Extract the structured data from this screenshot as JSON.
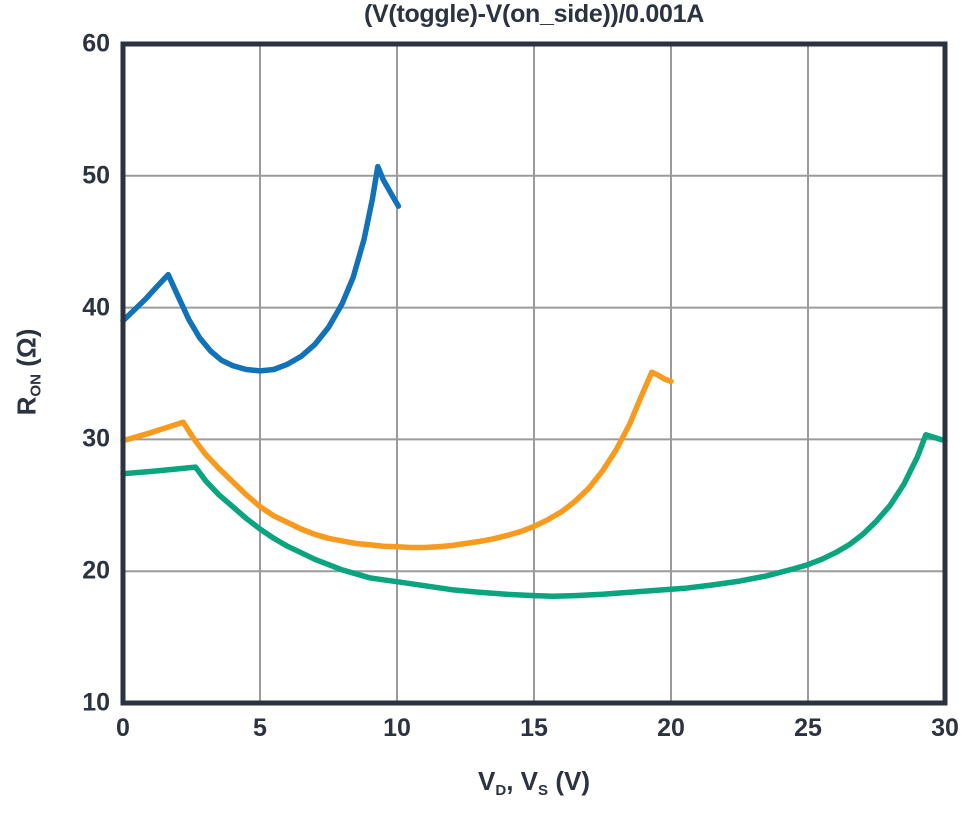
{
  "chart_data": {
    "type": "line",
    "title": "(V(toggle)-V(on_side))/0.001A",
    "xlabel": "V_D, V_S (V)",
    "ylabel": "R_ON (Ω)",
    "xlabel_parts": [
      [
        "V",
        false
      ],
      [
        "D",
        true
      ],
      [
        ", V",
        false
      ],
      [
        "S",
        true
      ],
      [
        " (V)",
        false
      ]
    ],
    "ylabel_parts": [
      [
        "R",
        false
      ],
      [
        "ON",
        true
      ],
      [
        " (Ω)",
        false
      ]
    ],
    "xlim": [
      0,
      30
    ],
    "ylim": [
      10,
      60
    ],
    "xticks": [
      0,
      5,
      10,
      15,
      20,
      25,
      30
    ],
    "yticks": [
      10,
      20,
      30,
      40,
      50,
      60
    ],
    "grid": true,
    "legend_position": "none",
    "colors": {
      "axis_frame": "#2b3240",
      "gridline": "#9b9b9b",
      "text": "#2b3240",
      "background": "#ffffff"
    },
    "series": [
      {
        "name": "blue",
        "color": "#1272b8",
        "points": [
          [
            0,
            39.0
          ],
          [
            0.4,
            39.8
          ],
          [
            0.8,
            40.6
          ],
          [
            1.2,
            41.5
          ],
          [
            1.65,
            42.5
          ],
          [
            2.0,
            40.9
          ],
          [
            2.4,
            39.1
          ],
          [
            2.8,
            37.7
          ],
          [
            3.2,
            36.7
          ],
          [
            3.6,
            36.0
          ],
          [
            4.0,
            35.6
          ],
          [
            4.5,
            35.3
          ],
          [
            5.0,
            35.2
          ],
          [
            5.5,
            35.3
          ],
          [
            6.0,
            35.7
          ],
          [
            6.5,
            36.3
          ],
          [
            7.0,
            37.2
          ],
          [
            7.5,
            38.5
          ],
          [
            8.0,
            40.3
          ],
          [
            8.4,
            42.3
          ],
          [
            8.8,
            45.2
          ],
          [
            9.1,
            48.2
          ],
          [
            9.3,
            50.7
          ],
          [
            9.5,
            49.7
          ],
          [
            9.8,
            48.6
          ],
          [
            10.05,
            47.7
          ]
        ]
      },
      {
        "name": "orange",
        "color": "#f89a1e",
        "points": [
          [
            0,
            29.9
          ],
          [
            0.5,
            30.2
          ],
          [
            1.0,
            30.5
          ],
          [
            1.6,
            30.9
          ],
          [
            2.2,
            31.3
          ],
          [
            2.6,
            30.0
          ],
          [
            3.0,
            28.9
          ],
          [
            3.5,
            27.8
          ],
          [
            4.0,
            26.8
          ],
          [
            4.5,
            25.8
          ],
          [
            5.0,
            24.9
          ],
          [
            5.5,
            24.2
          ],
          [
            6.0,
            23.7
          ],
          [
            6.5,
            23.2
          ],
          [
            7.0,
            22.8
          ],
          [
            7.5,
            22.5
          ],
          [
            8.0,
            22.3
          ],
          [
            8.5,
            22.1
          ],
          [
            9.0,
            22.0
          ],
          [
            9.5,
            21.9
          ],
          [
            10.0,
            21.85
          ],
          [
            10.5,
            21.8
          ],
          [
            11.0,
            21.8
          ],
          [
            11.5,
            21.85
          ],
          [
            12.0,
            21.95
          ],
          [
            12.5,
            22.1
          ],
          [
            13.0,
            22.25
          ],
          [
            13.5,
            22.45
          ],
          [
            14.0,
            22.7
          ],
          [
            14.5,
            23.0
          ],
          [
            15.0,
            23.4
          ],
          [
            15.5,
            23.9
          ],
          [
            16.0,
            24.5
          ],
          [
            16.5,
            25.3
          ],
          [
            17.0,
            26.3
          ],
          [
            17.5,
            27.6
          ],
          [
            18.0,
            29.2
          ],
          [
            18.5,
            31.2
          ],
          [
            18.9,
            33.2
          ],
          [
            19.3,
            35.1
          ],
          [
            19.5,
            34.9
          ],
          [
            19.75,
            34.6
          ],
          [
            20.0,
            34.4
          ]
        ]
      },
      {
        "name": "green",
        "color": "#0aa47e",
        "points": [
          [
            0,
            27.4
          ],
          [
            0.6,
            27.5
          ],
          [
            1.2,
            27.6
          ],
          [
            1.9,
            27.75
          ],
          [
            2.65,
            27.9
          ],
          [
            3.0,
            26.9
          ],
          [
            3.5,
            25.8
          ],
          [
            4.0,
            24.9
          ],
          [
            4.5,
            24.0
          ],
          [
            5.0,
            23.2
          ],
          [
            5.5,
            22.5
          ],
          [
            6.0,
            21.9
          ],
          [
            6.5,
            21.4
          ],
          [
            7.0,
            20.9
          ],
          [
            7.5,
            20.5
          ],
          [
            8.0,
            20.1
          ],
          [
            8.5,
            19.8
          ],
          [
            9.0,
            19.5
          ],
          [
            9.5,
            19.35
          ],
          [
            10.0,
            19.2
          ],
          [
            11.0,
            18.9
          ],
          [
            12.0,
            18.6
          ],
          [
            13.0,
            18.4
          ],
          [
            14.0,
            18.25
          ],
          [
            15.0,
            18.15
          ],
          [
            15.7,
            18.1
          ],
          [
            16.5,
            18.15
          ],
          [
            17.5,
            18.25
          ],
          [
            18.5,
            18.4
          ],
          [
            19.5,
            18.55
          ],
          [
            20.5,
            18.7
          ],
          [
            21.5,
            18.95
          ],
          [
            22.5,
            19.25
          ],
          [
            23.5,
            19.65
          ],
          [
            24.5,
            20.2
          ],
          [
            25.0,
            20.5
          ],
          [
            25.5,
            20.9
          ],
          [
            26.0,
            21.4
          ],
          [
            26.5,
            22.0
          ],
          [
            27.0,
            22.8
          ],
          [
            27.5,
            23.8
          ],
          [
            28.0,
            25.0
          ],
          [
            28.5,
            26.6
          ],
          [
            29.0,
            28.7
          ],
          [
            29.3,
            30.35
          ],
          [
            29.6,
            30.15
          ],
          [
            30.0,
            29.9
          ]
        ]
      }
    ]
  }
}
